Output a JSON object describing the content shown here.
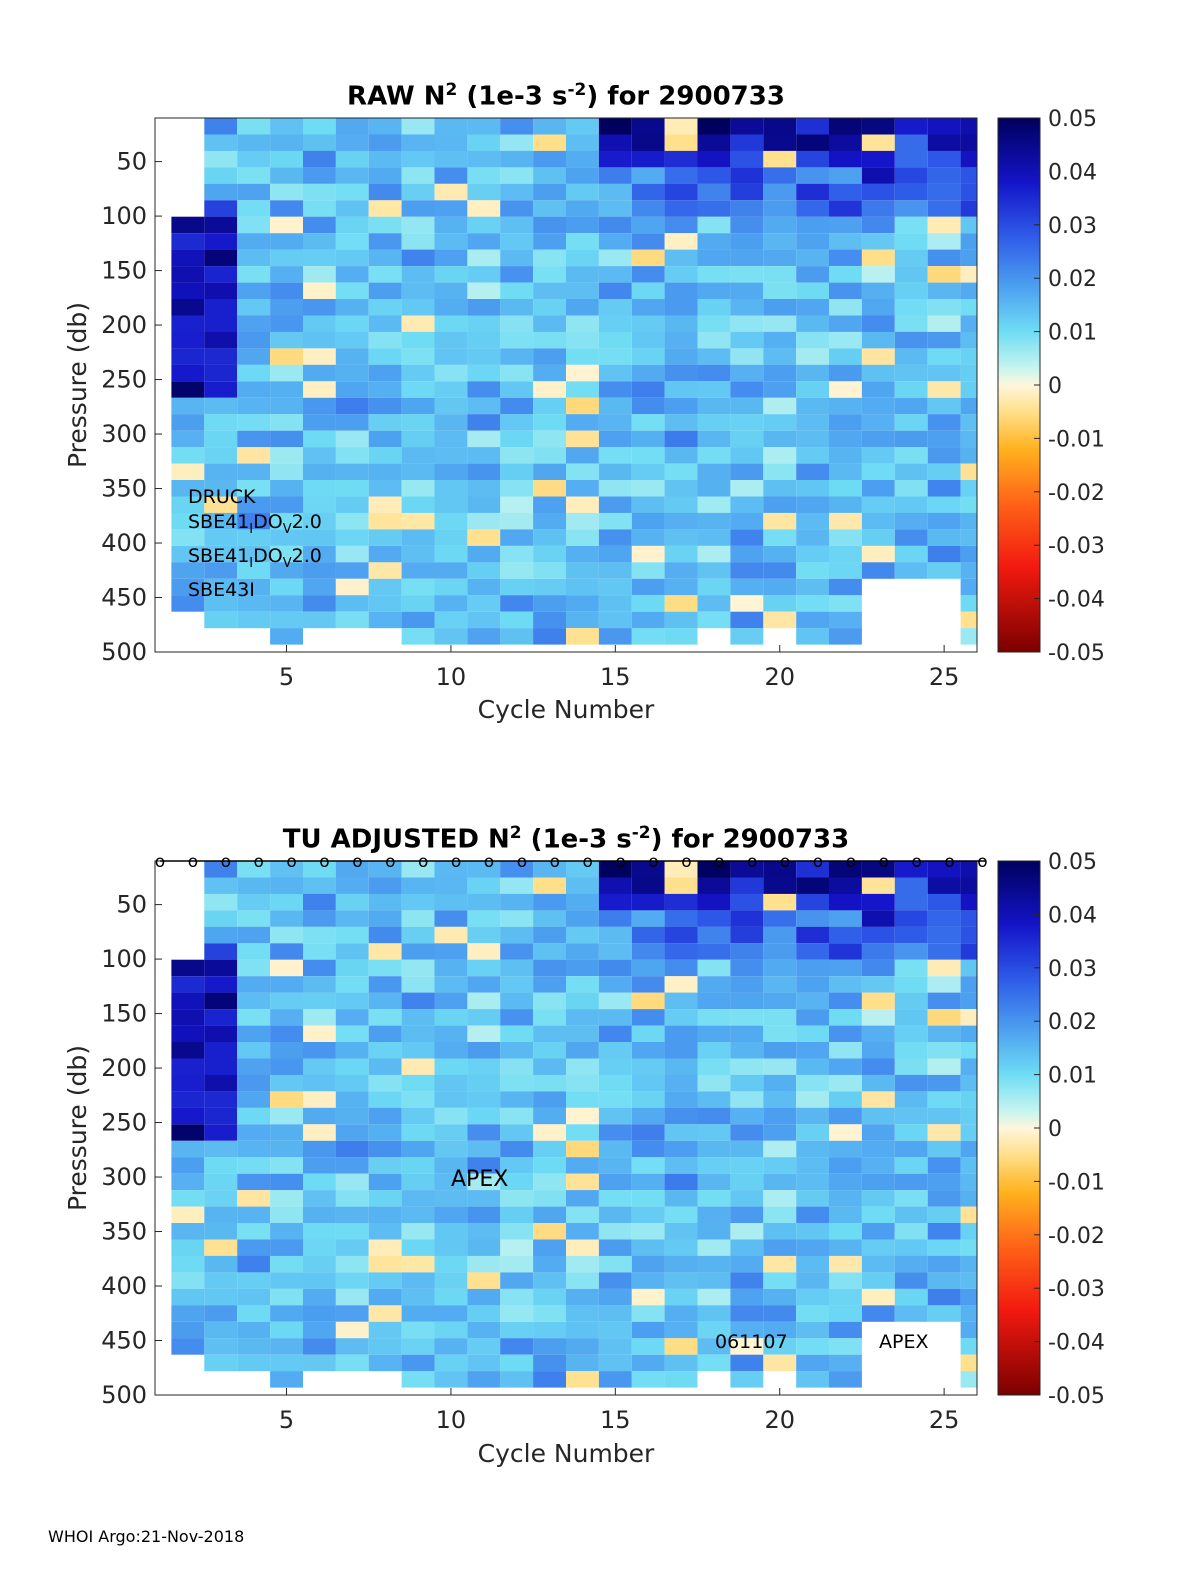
{
  "footer": "WHOI Argo:21-Nov-2018",
  "chart_data": [
    {
      "type": "heatmap",
      "title_prefix": "RAW N",
      "title_sup1": "2",
      "title_mid": " (1e-3 s",
      "title_sup2": "-2",
      "title_suffix": ") for 2900733",
      "xlabel": "Cycle Number",
      "ylabel": "Pressure (db)",
      "xlim": [
        1,
        26
      ],
      "ylim": [
        500,
        10
      ],
      "xticks": [
        5,
        10,
        15,
        20,
        25
      ],
      "yticks": [
        50,
        100,
        150,
        200,
        250,
        300,
        350,
        400,
        450,
        500
      ],
      "colorbar": {
        "min": -0.05,
        "max": 0.05,
        "ticks": [
          "0.05",
          "0.04",
          "0.03",
          "0.02",
          "0.01",
          "0",
          "-0.01",
          "-0.02",
          "-0.03",
          "-0.04",
          "-0.05"
        ]
      },
      "labels": {
        "druck": "DRUCK",
        "sbe41a_main": "SBE41",
        "sbe41a_sub1": "I",
        "sbe41a_mid": "DO",
        "sbe41a_sub2": "V",
        "sbe41a_end": "2.0",
        "sbe41b_main": "SBE41",
        "sbe41b_sub1": "I",
        "sbe41b_mid": "DO",
        "sbe41b_sub2": "V",
        "sbe41b_end": "2.0",
        "sbe43": "SBE43I"
      }
    },
    {
      "type": "heatmap",
      "title_prefix": "TU  ADJUSTED N",
      "title_sup1": "2",
      "title_mid": " (1e-3 s",
      "title_sup2": "-2",
      "title_suffix": ") for 2900733",
      "xlabel": "Cycle Number",
      "ylabel": "Pressure (db)",
      "xlim": [
        1,
        26
      ],
      "ylim": [
        500,
        10
      ],
      "xticks": [
        5,
        10,
        15,
        20,
        25
      ],
      "yticks": [
        50,
        100,
        150,
        200,
        250,
        300,
        350,
        400,
        450,
        500
      ],
      "colorbar": {
        "min": -0.05,
        "max": 0.05,
        "ticks": [
          "0.05",
          "0.04",
          "0.03",
          "0.02",
          "0.01",
          "0",
          "-0.01",
          "-0.02",
          "-0.03",
          "-0.04",
          "-0.05"
        ]
      },
      "qc_marker": "o",
      "qc_marker_cycles": [
        1,
        2,
        3,
        4,
        5,
        6,
        7,
        8,
        9,
        10,
        11,
        12,
        13,
        14,
        15,
        16,
        17,
        18,
        19,
        20,
        21,
        22,
        23,
        24,
        25,
        26
      ],
      "labels": {
        "apex_mid": "APEX",
        "serial": "061107",
        "apex_right": "APEX"
      }
    }
  ]
}
